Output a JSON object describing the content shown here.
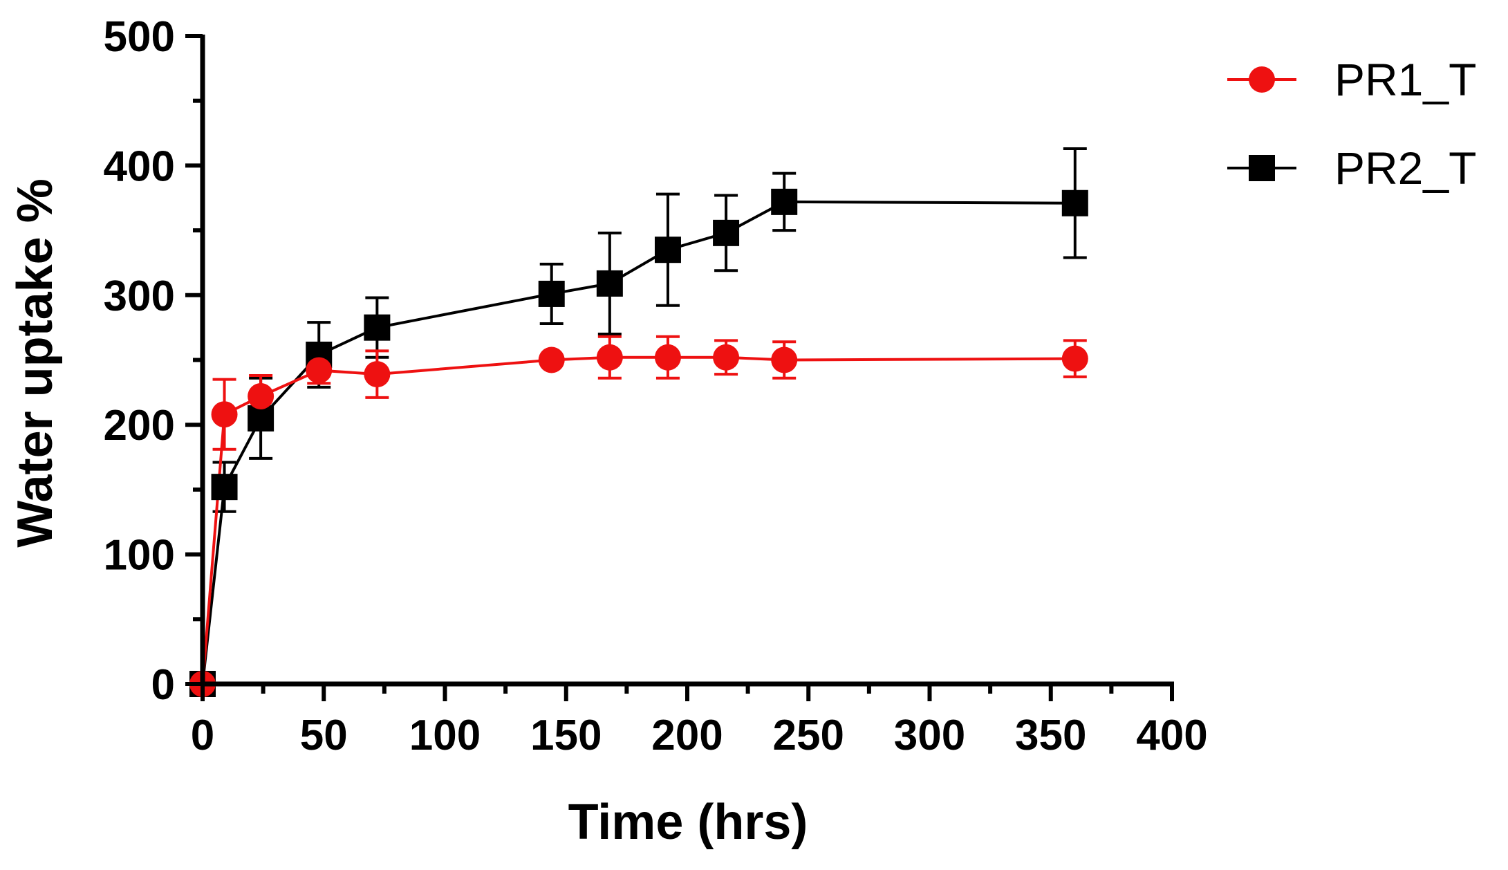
{
  "chart_data": {
    "type": "line",
    "title": "",
    "xlabel": "Time (hrs)",
    "ylabel": "Water uptake %",
    "xlim": [
      0,
      400
    ],
    "ylim": [
      0,
      500
    ],
    "x_ticks": [
      0,
      50,
      100,
      150,
      200,
      250,
      300,
      350,
      400
    ],
    "y_ticks": [
      0,
      100,
      200,
      300,
      400,
      500
    ],
    "grid": false,
    "legend_position": "top-right",
    "series": [
      {
        "name": "PR1_T",
        "color": "#ee1111",
        "marker": "circle",
        "x": [
          0,
          9,
          24,
          48,
          72,
          144,
          168,
          192,
          216,
          240,
          360
        ],
        "y": [
          0,
          208,
          222,
          242,
          239,
          250,
          252,
          252,
          252,
          250,
          251
        ],
        "err": [
          0,
          27,
          16,
          10,
          18,
          0,
          16,
          16,
          13,
          14,
          14
        ]
      },
      {
        "name": "PR2_T",
        "color": "#000000",
        "marker": "square",
        "x": [
          0,
          9,
          24,
          48,
          72,
          144,
          168,
          192,
          216,
          240,
          360
        ],
        "y": [
          0,
          152,
          205,
          254,
          275,
          301,
          309,
          335,
          348,
          372,
          371
        ],
        "err": [
          0,
          19,
          31,
          25,
          23,
          23,
          39,
          43,
          29,
          22,
          42
        ]
      }
    ]
  }
}
